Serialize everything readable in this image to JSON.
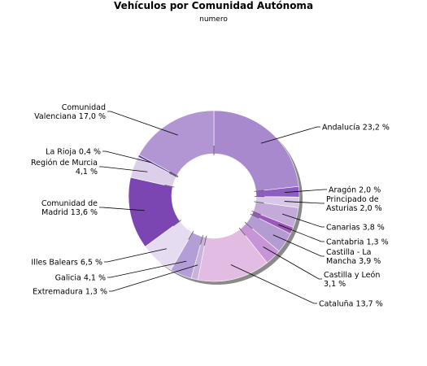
{
  "chart_data": {
    "type": "pie",
    "title": "Vehículos por Comunidad Autónoma",
    "subtitle": "numero",
    "unit": "%",
    "slices": [
      {
        "label": "Andalucía",
        "value": 23.2,
        "color": "#a889cd",
        "display": [
          "Andalucía 23,2 %"
        ]
      },
      {
        "label": "Aragón",
        "value": 2.0,
        "color": "#8d5dc0",
        "display": [
          "Aragón 2,0 %"
        ]
      },
      {
        "label": "Principado de Asturias",
        "value": 2.0,
        "color": "#d9c7e8",
        "display": [
          "Principado de",
          "Asturias 2,0 %"
        ]
      },
      {
        "label": "Canarias",
        "value": 3.8,
        "color": "#c3aad9",
        "display": [
          "Canarias 3,8 %"
        ]
      },
      {
        "label": "Cantabria",
        "value": 1.3,
        "color": "#9b58b8",
        "display": [
          "Cantabria 1,3 %"
        ]
      },
      {
        "label": "Castilla - La Mancha",
        "value": 3.9,
        "color": "#b49cd2",
        "display": [
          "Castilla - La",
          "Mancha 3,9 %"
        ]
      },
      {
        "label": "Castilla y León",
        "value": 3.1,
        "color": "#c894d8",
        "display": [
          "Castilla y León",
          "3,1 %"
        ]
      },
      {
        "label": "Cataluña",
        "value": 13.7,
        "color": "#e2bce2",
        "display": [
          "Cataluña 13,7 %"
        ]
      },
      {
        "label": "Extremadura",
        "value": 1.3,
        "color": "#c9b3de",
        "display": [
          "Extremadura 1,3 %"
        ]
      },
      {
        "label": "Galicia",
        "value": 4.1,
        "color": "#b49ed6",
        "display": [
          "Galicia 4,1 %"
        ]
      },
      {
        "label": "Illes Balears",
        "value": 6.5,
        "color": "#e6dcf1",
        "display": [
          "Illes Balears 6,5 %"
        ]
      },
      {
        "label": "Comunidad de Madrid",
        "value": 13.6,
        "color": "#7b46b2",
        "display": [
          "Comunidad de",
          "Madrid 13,6 %"
        ]
      },
      {
        "label": "Región de Murcia",
        "value": 4.1,
        "color": "#dccfea",
        "display": [
          "Región de Murcia",
          "4,1 %"
        ]
      },
      {
        "label": "La Rioja",
        "value": 0.4,
        "color": "#5c3f8c",
        "display": [
          "La Rioja 0,4 %"
        ]
      },
      {
        "label": "Comunidad Valenciana",
        "value": 17.0,
        "color": "#b196d3",
        "display": [
          "Comunidad",
          "Valenciana 17,0 %"
        ]
      }
    ],
    "legend": "none",
    "grid": false
  }
}
